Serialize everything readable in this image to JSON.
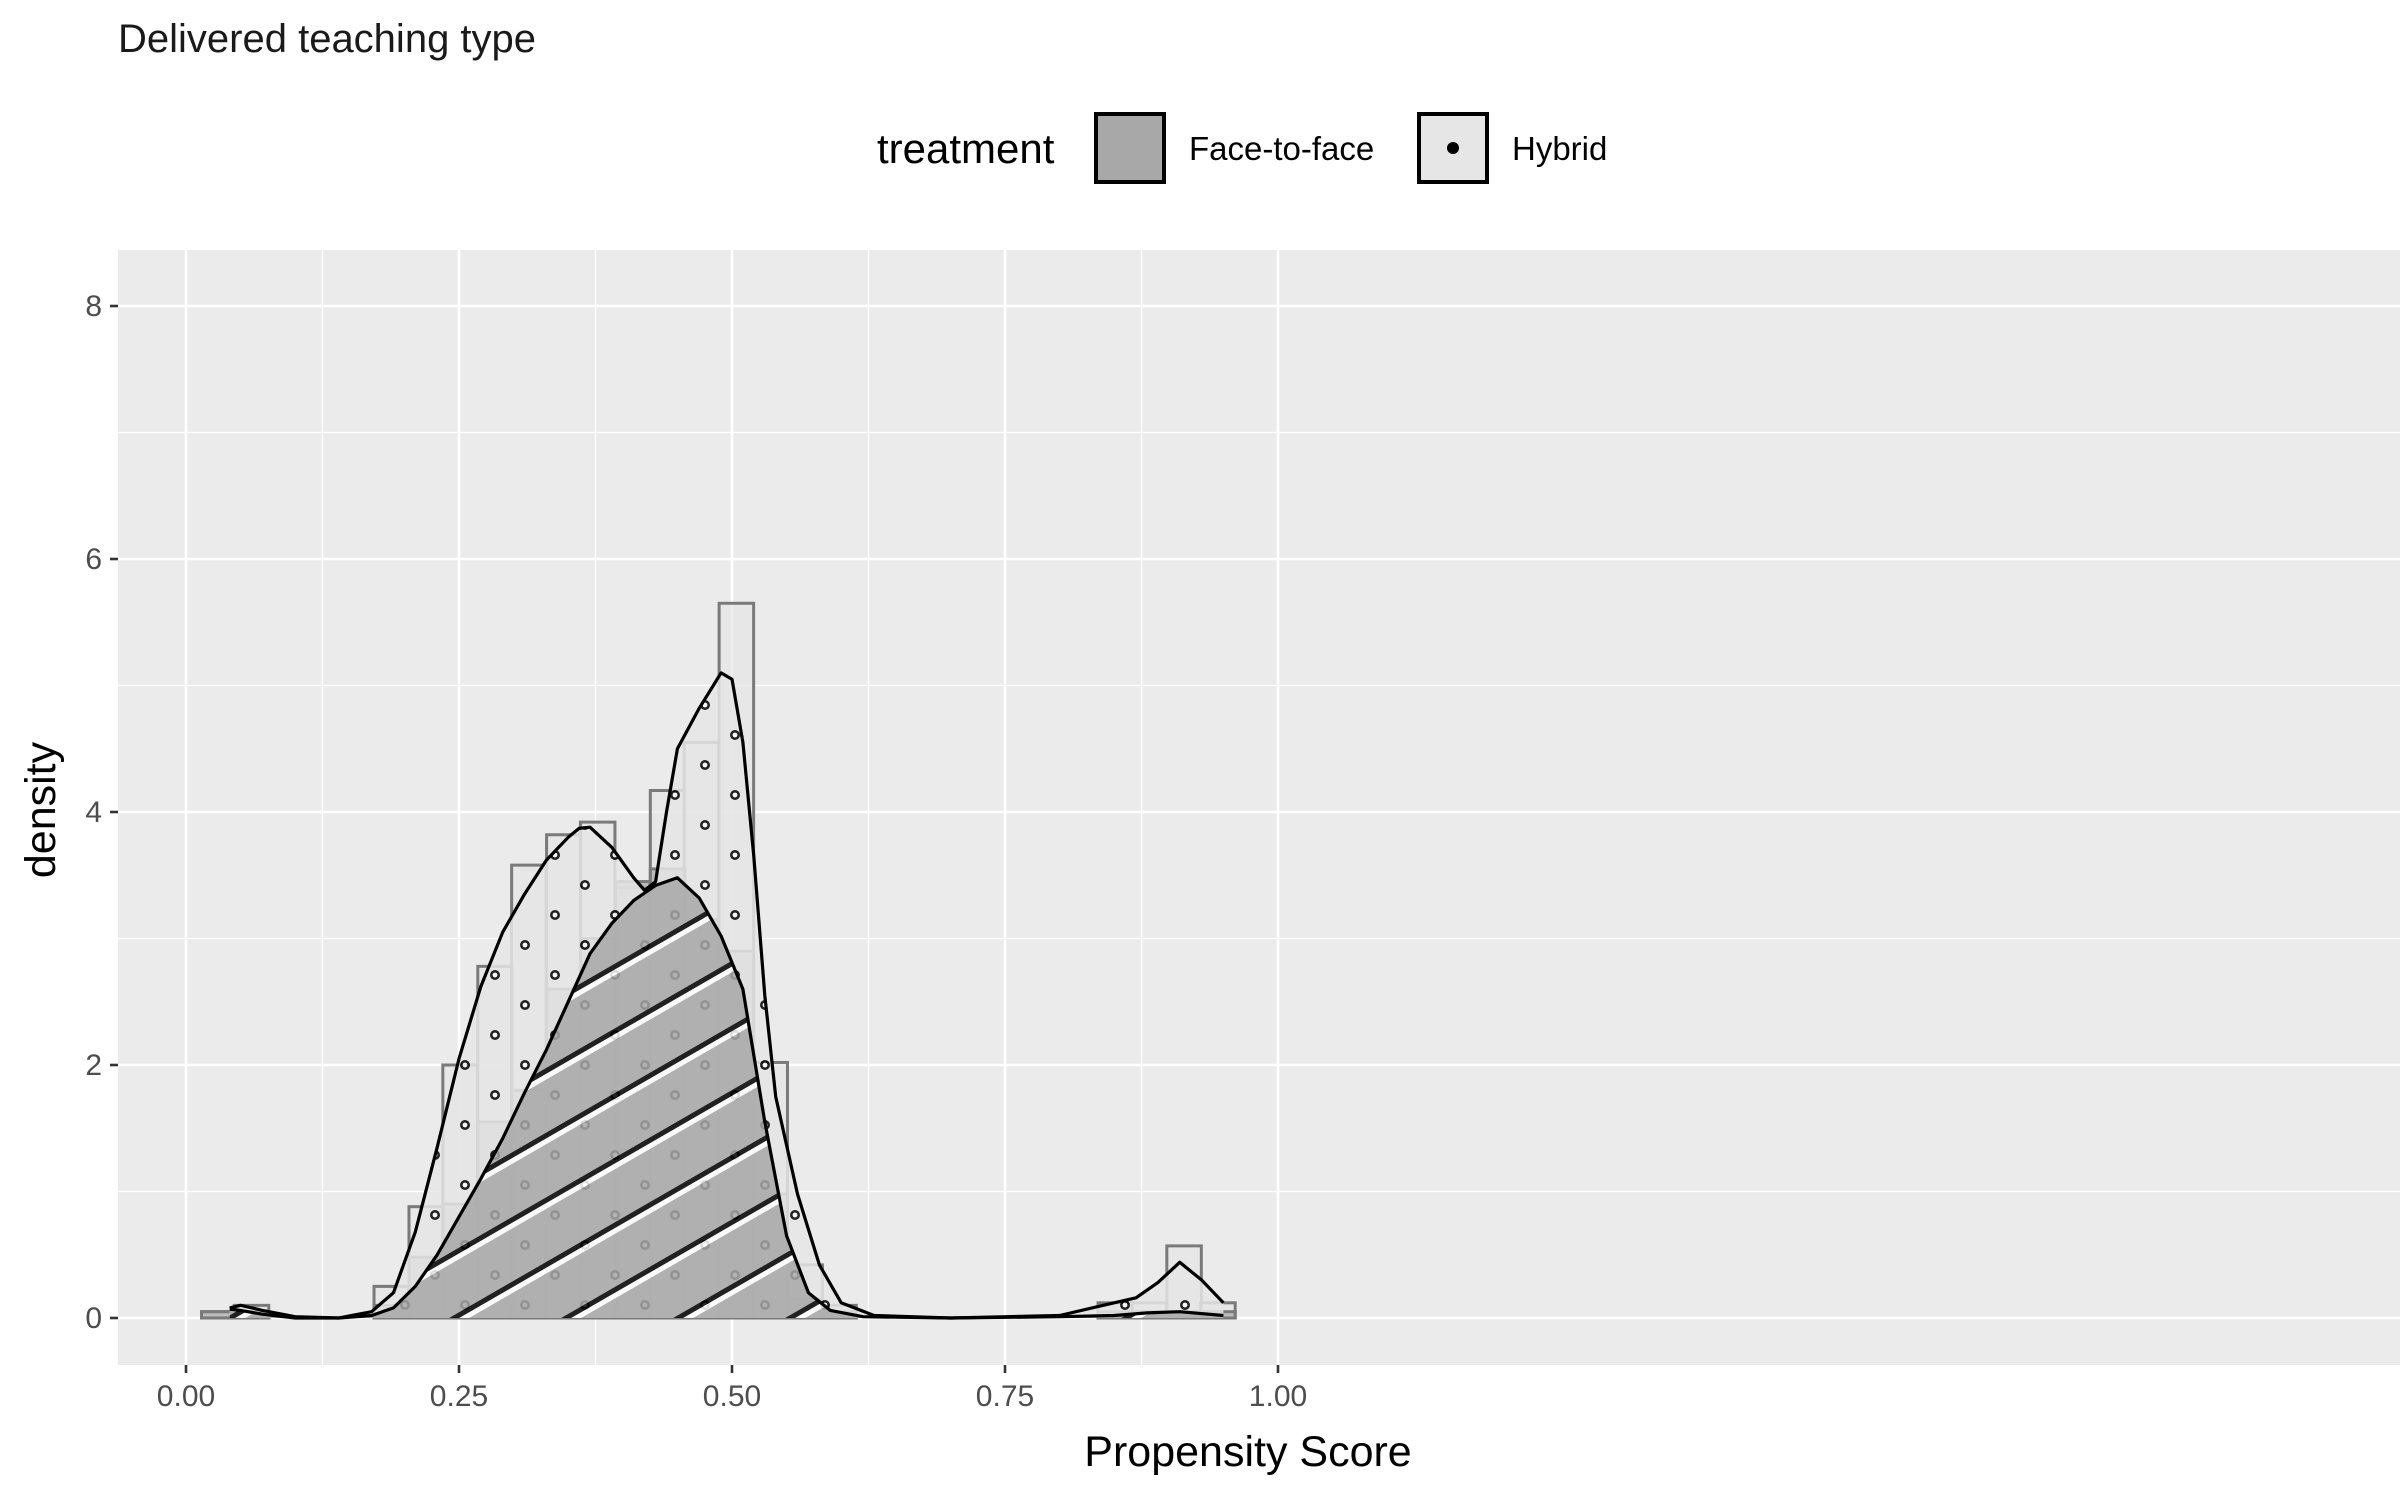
{
  "chart_data": {
    "type": "histogram",
    "title": "Delivered teaching type",
    "xlabel": "Propensity Score",
    "ylabel": "density",
    "xlim": [
      0.0,
      1.0
    ],
    "ylim": [
      0,
      8
    ],
    "x_ticks": [
      "0.00",
      "0.25",
      "0.50",
      "0.75",
      "1.00"
    ],
    "y_ticks": [
      "0",
      "2",
      "4",
      "6",
      "8"
    ],
    "grid": true,
    "bin_width": 0.0316,
    "legend": {
      "title": "treatment",
      "position": "top",
      "entries": [
        {
          "label": "Face-to-face",
          "fill": "#a8a8a8",
          "pattern": "stripe"
        },
        {
          "label": "Hybrid",
          "fill": "#e6e6e6",
          "pattern": "dots"
        }
      ]
    },
    "series": [
      {
        "name": "Face-to-face",
        "color": "#a8a8a8",
        "bins": [
          {
            "x": 0.03,
            "y": 0.05
          },
          {
            "x": 0.06,
            "y": 0.05
          },
          {
            "x": 0.188,
            "y": 0.1
          },
          {
            "x": 0.22,
            "y": 0.48
          },
          {
            "x": 0.251,
            "y": 0.9
          },
          {
            "x": 0.283,
            "y": 1.55
          },
          {
            "x": 0.314,
            "y": 1.8
          },
          {
            "x": 0.346,
            "y": 2.6
          },
          {
            "x": 0.377,
            "y": 3.0
          },
          {
            "x": 0.409,
            "y": 3.45
          },
          {
            "x": 0.441,
            "y": 3.55
          },
          {
            "x": 0.472,
            "y": 3.15
          },
          {
            "x": 0.504,
            "y": 2.9
          },
          {
            "x": 0.535,
            "y": 0.98
          },
          {
            "x": 0.567,
            "y": 0.15
          },
          {
            "x": 0.598,
            "y": 0.05
          },
          {
            "x": 0.851,
            "y": 0.05
          },
          {
            "x": 0.882,
            "y": 0.05
          },
          {
            "x": 0.914,
            "y": 0.05
          },
          {
            "x": 0.945,
            "y": 0.05
          }
        ],
        "density": [
          [
            0.04,
            0.07
          ],
          [
            0.05,
            0.06
          ],
          [
            0.07,
            0.03
          ],
          [
            0.1,
            0.0
          ],
          [
            0.14,
            0.0
          ],
          [
            0.17,
            0.02
          ],
          [
            0.19,
            0.08
          ],
          [
            0.21,
            0.25
          ],
          [
            0.23,
            0.5
          ],
          [
            0.25,
            0.8
          ],
          [
            0.27,
            1.1
          ],
          [
            0.29,
            1.42
          ],
          [
            0.31,
            1.78
          ],
          [
            0.33,
            2.12
          ],
          [
            0.35,
            2.5
          ],
          [
            0.37,
            2.88
          ],
          [
            0.39,
            3.12
          ],
          [
            0.41,
            3.3
          ],
          [
            0.43,
            3.42
          ],
          [
            0.45,
            3.48
          ],
          [
            0.47,
            3.32
          ],
          [
            0.49,
            3.02
          ],
          [
            0.51,
            2.6
          ],
          [
            0.53,
            1.55
          ],
          [
            0.55,
            0.65
          ],
          [
            0.57,
            0.2
          ],
          [
            0.59,
            0.06
          ],
          [
            0.62,
            0.01
          ],
          [
            0.7,
            0.0
          ],
          [
            0.8,
            0.01
          ],
          [
            0.85,
            0.02
          ],
          [
            0.88,
            0.04
          ],
          [
            0.91,
            0.05
          ],
          [
            0.95,
            0.02
          ]
        ]
      },
      {
        "name": "Hybrid",
        "color": "#e6e6e6",
        "bins": [
          {
            "x": 0.03,
            "y": 0.05
          },
          {
            "x": 0.06,
            "y": 0.1
          },
          {
            "x": 0.188,
            "y": 0.25
          },
          {
            "x": 0.22,
            "y": 0.88
          },
          {
            "x": 0.251,
            "y": 2.0
          },
          {
            "x": 0.283,
            "y": 2.78
          },
          {
            "x": 0.314,
            "y": 3.58
          },
          {
            "x": 0.346,
            "y": 3.82
          },
          {
            "x": 0.377,
            "y": 3.92
          },
          {
            "x": 0.409,
            "y": 3.4
          },
          {
            "x": 0.441,
            "y": 4.17
          },
          {
            "x": 0.472,
            "y": 4.55
          },
          {
            "x": 0.504,
            "y": 5.65
          },
          {
            "x": 0.535,
            "y": 2.02
          },
          {
            "x": 0.567,
            "y": 0.42
          },
          {
            "x": 0.598,
            "y": 0.1
          },
          {
            "x": 0.851,
            "y": 0.12
          },
          {
            "x": 0.882,
            "y": 0.12
          },
          {
            "x": 0.914,
            "y": 0.57
          },
          {
            "x": 0.945,
            "y": 0.12
          }
        ],
        "density": [
          [
            0.04,
            0.08
          ],
          [
            0.05,
            0.1
          ],
          [
            0.07,
            0.06
          ],
          [
            0.1,
            0.01
          ],
          [
            0.14,
            0.0
          ],
          [
            0.17,
            0.05
          ],
          [
            0.19,
            0.2
          ],
          [
            0.21,
            0.68
          ],
          [
            0.23,
            1.35
          ],
          [
            0.25,
            2.05
          ],
          [
            0.27,
            2.62
          ],
          [
            0.29,
            3.05
          ],
          [
            0.31,
            3.35
          ],
          [
            0.33,
            3.62
          ],
          [
            0.35,
            3.8
          ],
          [
            0.36,
            3.87
          ],
          [
            0.37,
            3.88
          ],
          [
            0.39,
            3.72
          ],
          [
            0.41,
            3.48
          ],
          [
            0.42,
            3.38
          ],
          [
            0.43,
            3.45
          ],
          [
            0.44,
            4.0
          ],
          [
            0.45,
            4.5
          ],
          [
            0.47,
            4.82
          ],
          [
            0.49,
            5.1
          ],
          [
            0.5,
            5.05
          ],
          [
            0.51,
            4.55
          ],
          [
            0.52,
            3.65
          ],
          [
            0.53,
            2.55
          ],
          [
            0.54,
            1.75
          ],
          [
            0.56,
            0.98
          ],
          [
            0.58,
            0.42
          ],
          [
            0.6,
            0.12
          ],
          [
            0.63,
            0.02
          ],
          [
            0.7,
            0.0
          ],
          [
            0.8,
            0.02
          ],
          [
            0.84,
            0.1
          ],
          [
            0.87,
            0.16
          ],
          [
            0.89,
            0.28
          ],
          [
            0.91,
            0.44
          ],
          [
            0.93,
            0.3
          ],
          [
            0.95,
            0.12
          ]
        ]
      }
    ]
  }
}
